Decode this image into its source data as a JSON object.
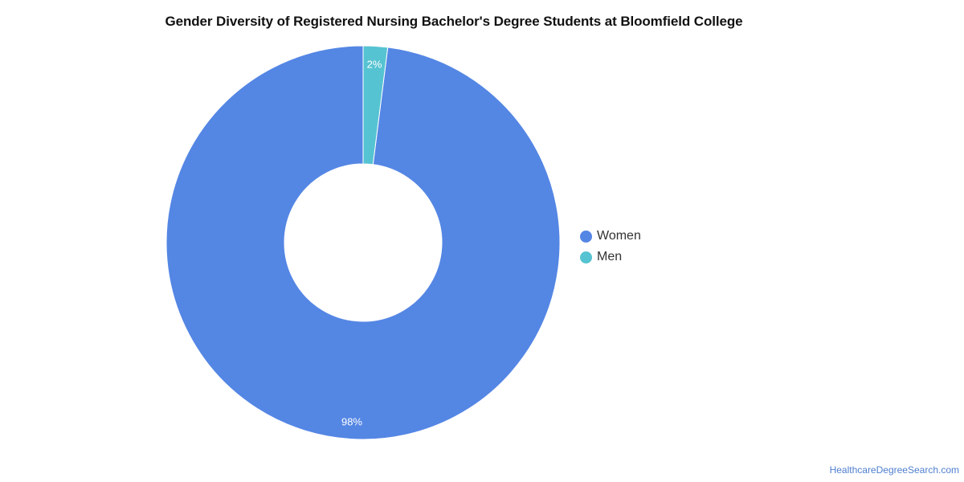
{
  "chart_data": {
    "type": "pie",
    "donut": true,
    "title": "Gender Diversity of Registered Nursing Bachelor's Degree Students at Bloomfield College",
    "categories": [
      "Women",
      "Men"
    ],
    "values": [
      98,
      2
    ],
    "labels": [
      "98%",
      "2%"
    ],
    "colors": [
      "#5486e4",
      "#56c3d2"
    ],
    "legend_position": "right",
    "start_angle": "top",
    "direction": "counter-clockwise"
  },
  "legend": {
    "items": [
      {
        "label": "Women",
        "color": "#5486e4"
      },
      {
        "label": "Men",
        "color": "#56c3d2"
      }
    ]
  },
  "footer": {
    "source": "HealthcareDegreeSearch.com"
  }
}
